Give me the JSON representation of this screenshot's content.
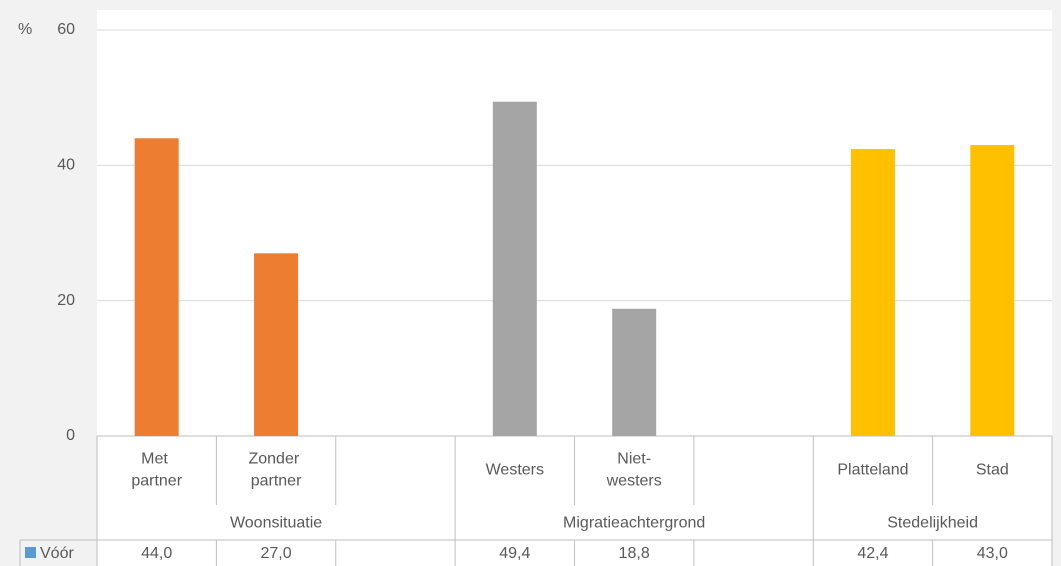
{
  "chart_data": {
    "type": "bar",
    "y_label": "%",
    "categories": [
      "Met partner",
      "Zonder partner",
      null,
      "Westers",
      "Niet-westers",
      null,
      "Platteland",
      "Stad"
    ],
    "groups": [
      {
        "label": "Woonsituatie",
        "span": 3
      },
      {
        "label": "Migratieachtergrond",
        "span": 3
      },
      {
        "label": "Stedelijkheid",
        "span": 2
      }
    ],
    "bar_colors": [
      "#ed7d31",
      "#ed7d31",
      "#ed7d31",
      "#a5a5a5",
      "#a5a5a5",
      "#a5a5a5",
      "#ffc000",
      "#ffc000"
    ],
    "series": [
      {
        "name": "Vóór",
        "color": "#5b9bd5",
        "values": [
          44.0,
          27.0,
          null,
          49.4,
          18.8,
          null,
          42.4,
          43.0
        ],
        "value_labels": [
          "44,0",
          "27,0",
          null,
          "49,4",
          "18,8",
          null,
          "42,4",
          "43,0"
        ]
      }
    ],
    "ylim": [
      0,
      60
    ],
    "yticks": [
      0,
      20,
      40,
      60
    ],
    "grid": true
  }
}
